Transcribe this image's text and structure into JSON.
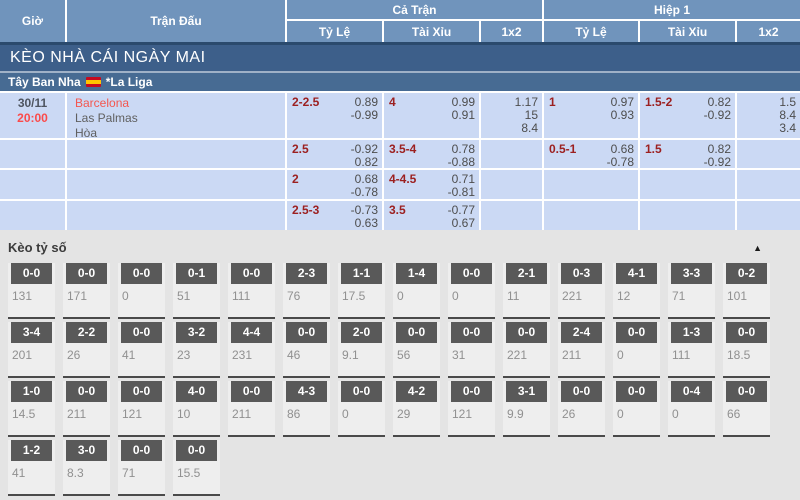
{
  "colors": {
    "header_blue": "#7094bc",
    "banner_blue": "#3d5f8a",
    "league_blue": "#476b93",
    "row_blue": "#cbd9f4",
    "time_red": "#fb4a4a",
    "team_red": "#f4564f",
    "handicap_maroon": "#9c2020",
    "score_box_gray": "#595959",
    "section_bg": "#e4e4e4"
  },
  "table": {
    "header": {
      "col_time": "Giờ",
      "col_match": "Trận Đấu",
      "group_full": "Cả Trận",
      "group_half": "Hiệp 1",
      "sub_odds": "Tỷ Lệ",
      "sub_ou": "Tài Xỉu",
      "sub_1x2": "1x2"
    },
    "banner": "KÈO NHÀ CÁI NGÀY MAI",
    "league": {
      "country": "Tây Ban Nha",
      "flag_icon": "spain-flag-icon",
      "name": "*La Liga"
    },
    "match": {
      "date": "30/11",
      "time": "20:00",
      "home": "Barcelona",
      "away": "Las Palmas",
      "draw": "Hòa"
    },
    "rows": [
      {
        "ft_hdp": "2-2.5",
        "ft_hdp_odds": [
          "0.89",
          "-0.99"
        ],
        "ft_ou": "4",
        "ft_ou_odds": [
          "0.99",
          "0.91"
        ],
        "ft_1x2": [
          "1.17",
          "15",
          "8.4"
        ],
        "h1_hdp": "1",
        "h1_hdp_odds": [
          "0.97",
          "0.93"
        ],
        "h1_ou": "1.5-2",
        "h1_ou_odds": [
          "0.82",
          "-0.92"
        ],
        "h1_1x2": [
          "1.5",
          "8.4",
          "3.4"
        ]
      },
      {
        "ft_hdp": "2.5",
        "ft_hdp_odds": [
          "-0.92",
          "0.82"
        ],
        "ft_ou": "3.5-4",
        "ft_ou_odds": [
          "0.78",
          "-0.88"
        ],
        "h1_hdp": "0.5-1",
        "h1_hdp_odds": [
          "0.68",
          "-0.78"
        ],
        "h1_ou": "1.5",
        "h1_ou_odds": [
          "0.82",
          "-0.92"
        ]
      },
      {
        "ft_hdp": "2",
        "ft_hdp_odds": [
          "0.68",
          "-0.78"
        ],
        "ft_ou": "4-4.5",
        "ft_ou_odds": [
          "0.71",
          "-0.81"
        ]
      },
      {
        "ft_hdp": "2.5-3",
        "ft_hdp_odds": [
          "-0.73",
          "0.63"
        ],
        "ft_ou": "3.5",
        "ft_ou_odds": [
          "-0.77",
          "0.67"
        ]
      }
    ]
  },
  "score_section": {
    "title": "Kèo tỷ số",
    "collapse_icon": "▲",
    "rows": [
      [
        {
          "score": "0-0",
          "value": "131"
        },
        {
          "score": "0-0",
          "value": "171"
        },
        {
          "score": "0-0",
          "value": "0"
        },
        {
          "score": "0-1",
          "value": "51"
        },
        {
          "score": "0-0",
          "value": "111"
        },
        {
          "score": "2-3",
          "value": "76"
        },
        {
          "score": "1-1",
          "value": "17.5"
        },
        {
          "score": "1-4",
          "value": "0"
        },
        {
          "score": "0-0",
          "value": "0"
        },
        {
          "score": "2-1",
          "value": "11"
        },
        {
          "score": "0-3",
          "value": "221"
        },
        {
          "score": "4-1",
          "value": "12"
        },
        {
          "score": "3-3",
          "value": "71"
        },
        {
          "score": "0-2",
          "value": "101"
        }
      ],
      [
        {
          "score": "3-4",
          "value": "201"
        },
        {
          "score": "2-2",
          "value": "26"
        },
        {
          "score": "0-0",
          "value": "41"
        },
        {
          "score": "3-2",
          "value": "23"
        },
        {
          "score": "4-4",
          "value": "231"
        },
        {
          "score": "0-0",
          "value": "46"
        },
        {
          "score": "2-0",
          "value": "9.1"
        },
        {
          "score": "0-0",
          "value": "56"
        },
        {
          "score": "0-0",
          "value": "31"
        },
        {
          "score": "0-0",
          "value": "221"
        },
        {
          "score": "2-4",
          "value": "211"
        },
        {
          "score": "0-0",
          "value": "0"
        },
        {
          "score": "1-3",
          "value": "111"
        },
        {
          "score": "0-0",
          "value": "18.5"
        }
      ],
      [
        {
          "score": "1-0",
          "value": "14.5"
        },
        {
          "score": "0-0",
          "value": "211"
        },
        {
          "score": "0-0",
          "value": "121"
        },
        {
          "score": "4-0",
          "value": "10"
        },
        {
          "score": "0-0",
          "value": "211"
        },
        {
          "score": "4-3",
          "value": "86"
        },
        {
          "score": "0-0",
          "value": "0"
        },
        {
          "score": "4-2",
          "value": "29"
        },
        {
          "score": "0-0",
          "value": "121"
        },
        {
          "score": "3-1",
          "value": "9.9"
        },
        {
          "score": "0-0",
          "value": "26"
        },
        {
          "score": "0-0",
          "value": "0"
        },
        {
          "score": "0-4",
          "value": "0"
        },
        {
          "score": "0-0",
          "value": "66"
        }
      ],
      [
        {
          "score": "1-2",
          "value": "41"
        },
        {
          "score": "3-0",
          "value": "8.3"
        },
        {
          "score": "0-0",
          "value": "71"
        },
        {
          "score": "0-0",
          "value": "15.5"
        }
      ]
    ]
  }
}
